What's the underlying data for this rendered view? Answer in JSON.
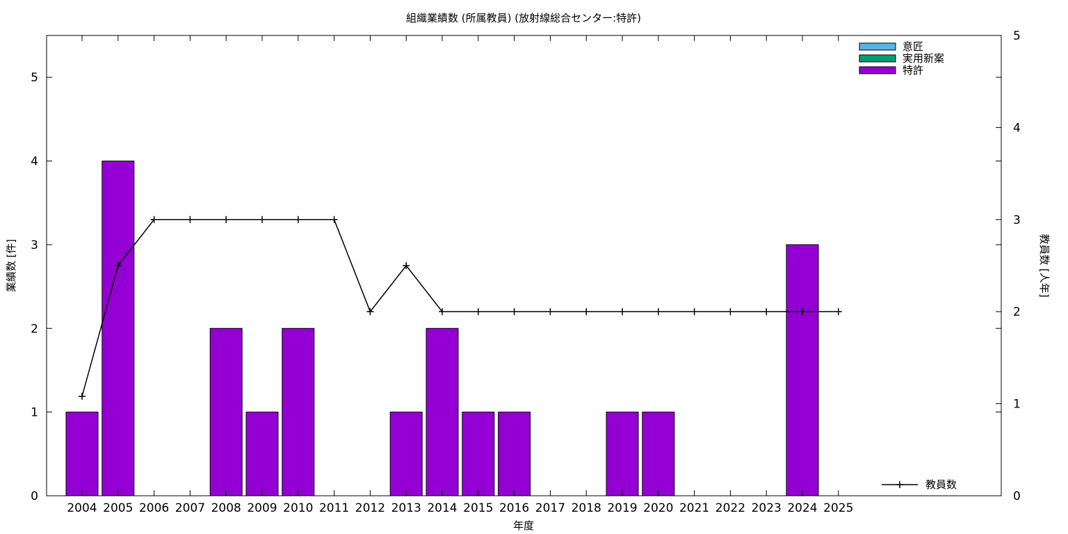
{
  "chart_data": {
    "type": "bar",
    "title": "組織業績数 (所属教員) (放射線総合センター:特許)",
    "xlabel": "年度",
    "ylabel": "業績数 [件]",
    "y2label": "教員数 [人年]",
    "categories": [
      "2004",
      "2005",
      "2006",
      "2007",
      "2008",
      "2009",
      "2010",
      "2011",
      "2012",
      "2013",
      "2014",
      "2015",
      "2016",
      "2017",
      "2018",
      "2019",
      "2020",
      "2021",
      "2022",
      "2023",
      "2024",
      "2025"
    ],
    "ylim": [
      0,
      5.5
    ],
    "yticks": [
      0,
      1,
      2,
      3,
      4,
      5
    ],
    "y2lim": [
      0,
      5
    ],
    "y2ticks": [
      0,
      1,
      2,
      3,
      4,
      5
    ],
    "grid": false,
    "legend_position": "top-right",
    "series": [
      {
        "name": "意匠",
        "kind": "bar",
        "color": "#56b4e9",
        "values": [
          0,
          0,
          0,
          0,
          0,
          0,
          0,
          0,
          0,
          0,
          0,
          0,
          0,
          0,
          0,
          0,
          0,
          0,
          0,
          0,
          0,
          0
        ]
      },
      {
        "name": "実用新案",
        "kind": "bar",
        "color": "#009e73",
        "values": [
          0,
          0,
          0,
          0,
          0,
          0,
          0,
          0,
          0,
          0,
          0,
          0,
          0,
          0,
          0,
          0,
          0,
          0,
          0,
          0,
          0,
          0
        ]
      },
      {
        "name": "特許",
        "kind": "bar",
        "color": "#9400d3",
        "values": [
          1,
          4,
          0,
          0,
          2,
          1,
          2,
          0,
          0,
          1,
          2,
          1,
          1,
          0,
          0,
          1,
          1,
          0,
          0,
          0,
          3,
          0
        ]
      },
      {
        "name": "教員数",
        "kind": "line",
        "axis": "y2",
        "color": "#000000",
        "legend_position": "bottom-right",
        "values": [
          1.08,
          2.5,
          3,
          3,
          3,
          3,
          3,
          3,
          2,
          2.5,
          2,
          2,
          2,
          2,
          2,
          2,
          2,
          2,
          2,
          2,
          2,
          2
        ]
      }
    ]
  }
}
